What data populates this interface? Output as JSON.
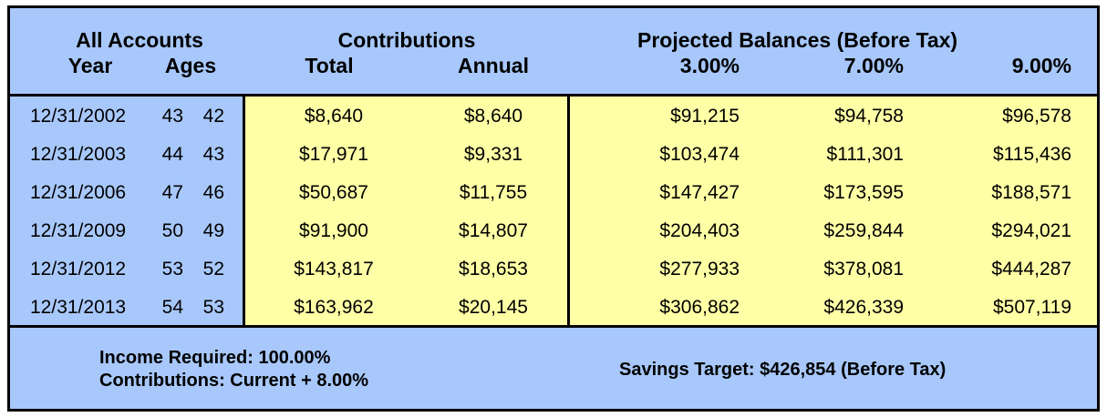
{
  "header": {
    "group_left": "All Accounts",
    "year": "Year",
    "ages": "Ages",
    "contributions": "Contributions",
    "total": "Total",
    "annual": "Annual",
    "projected": "Projected Balances  (Before Tax)",
    "rate1": "3.00%",
    "rate2": "7.00%",
    "rate3": "9.00%"
  },
  "rows": [
    {
      "date": "12/31/2002",
      "age1": "43",
      "age2": "42",
      "total": "$8,640",
      "annual": "$8,640",
      "p3": "$91,215",
      "p7": "$94,758",
      "p9": "$96,578"
    },
    {
      "date": "12/31/2003",
      "age1": "44",
      "age2": "43",
      "total": "$17,971",
      "annual": "$9,331",
      "p3": "$103,474",
      "p7": "$111,301",
      "p9": "$115,436"
    },
    {
      "date": "12/31/2006",
      "age1": "47",
      "age2": "46",
      "total": "$50,687",
      "annual": "$11,755",
      "p3": "$147,427",
      "p7": "$173,595",
      "p9": "$188,571"
    },
    {
      "date": "12/31/2009",
      "age1": "50",
      "age2": "49",
      "total": "$91,900",
      "annual": "$14,807",
      "p3": "$204,403",
      "p7": "$259,844",
      "p9": "$294,021"
    },
    {
      "date": "12/31/2012",
      "age1": "53",
      "age2": "52",
      "total": "$143,817",
      "annual": "$18,653",
      "p3": "$277,933",
      "p7": "$378,081",
      "p9": "$444,287"
    },
    {
      "date": "12/31/2013",
      "age1": "54",
      "age2": "53",
      "total": "$163,962",
      "annual": "$20,145",
      "p3": "$306,862",
      "p7": "$426,339",
      "p9": "$507,119"
    }
  ],
  "footer": {
    "income_required": "Income Required:  100.00%",
    "contributions": "Contributions:  Current + 8.00%",
    "savings_target": "Savings Target:   $426,854    (Before Tax)"
  },
  "colors": {
    "header_bg": "#a8c8fb",
    "cell_bg": "#ffffa6"
  }
}
